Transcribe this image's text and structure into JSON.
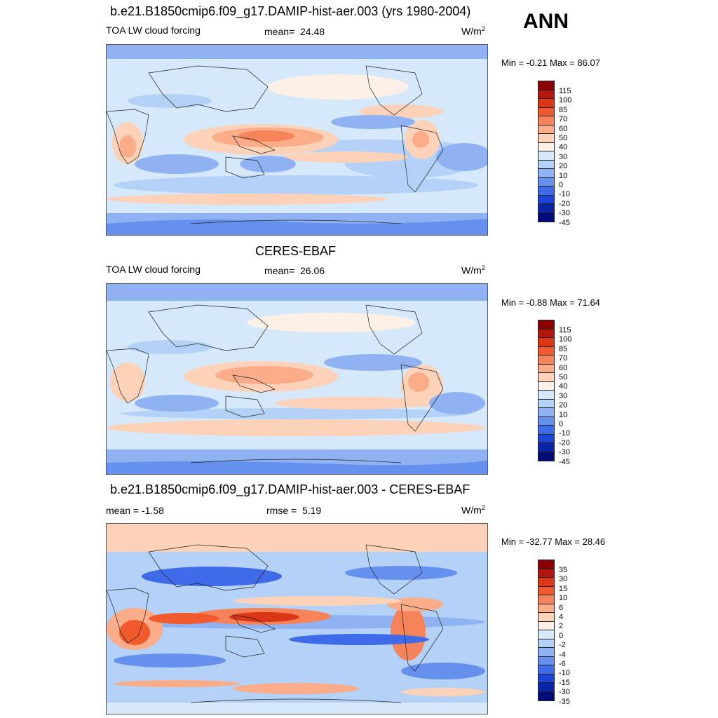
{
  "season": "ANN",
  "panels": [
    {
      "title": "b.e21.B1850cmip6.f09_g17.DAMIP-hist-aer.003 (yrs 1980-2004)",
      "left_label": "TOA LW cloud forcing",
      "stat_label": "mean=",
      "stat_value": "24.48",
      "units": "W/m",
      "units_sup": "2",
      "minmax": "Min =  -0.21 Max =  86.07",
      "colorbar_labels": [
        "115",
        "100",
        "85",
        "70",
        "60",
        "50",
        "40",
        "30",
        "20",
        "10",
        "0",
        "-10",
        "-20",
        "-30",
        "-45"
      ]
    },
    {
      "title": "CERES-EBAF",
      "left_label": "TOA LW cloud forcing",
      "stat_label": "mean=",
      "stat_value": "26.06",
      "units": "W/m",
      "units_sup": "2",
      "minmax": "Min =  -0.88 Max =  71.64",
      "colorbar_labels": [
        "115",
        "100",
        "85",
        "70",
        "60",
        "50",
        "40",
        "30",
        "20",
        "10",
        "0",
        "-10",
        "-20",
        "-30",
        "-45"
      ]
    },
    {
      "title": "b.e21.B1850cmip6.f09_g17.DAMIP-hist-aer.003 - CERES-EBAF",
      "left_label": "mean =  -1.58",
      "stat_label": "rmse =",
      "stat_value": "5.19",
      "units": "W/m",
      "units_sup": "2",
      "minmax": "Min = -32.77 Max =  28.46",
      "colorbar_labels": [
        "35",
        "30",
        "15",
        "10",
        "6",
        "4",
        "2",
        "0",
        "-2",
        "-4",
        "-6",
        "-10",
        "-15",
        "-30",
        "-35"
      ]
    }
  ],
  "colorbar_colors": [
    "#8b0000",
    "#b2160c",
    "#d93716",
    "#f05a2c",
    "#f7835a",
    "#fbac89",
    "#fdd2b8",
    "#fdf0e6",
    "#d6e9fb",
    "#b4d1f7",
    "#8fb2f3",
    "#6690ee",
    "#3f6be8",
    "#1b45d6",
    "#0a24a8",
    "#000c7a"
  ]
}
